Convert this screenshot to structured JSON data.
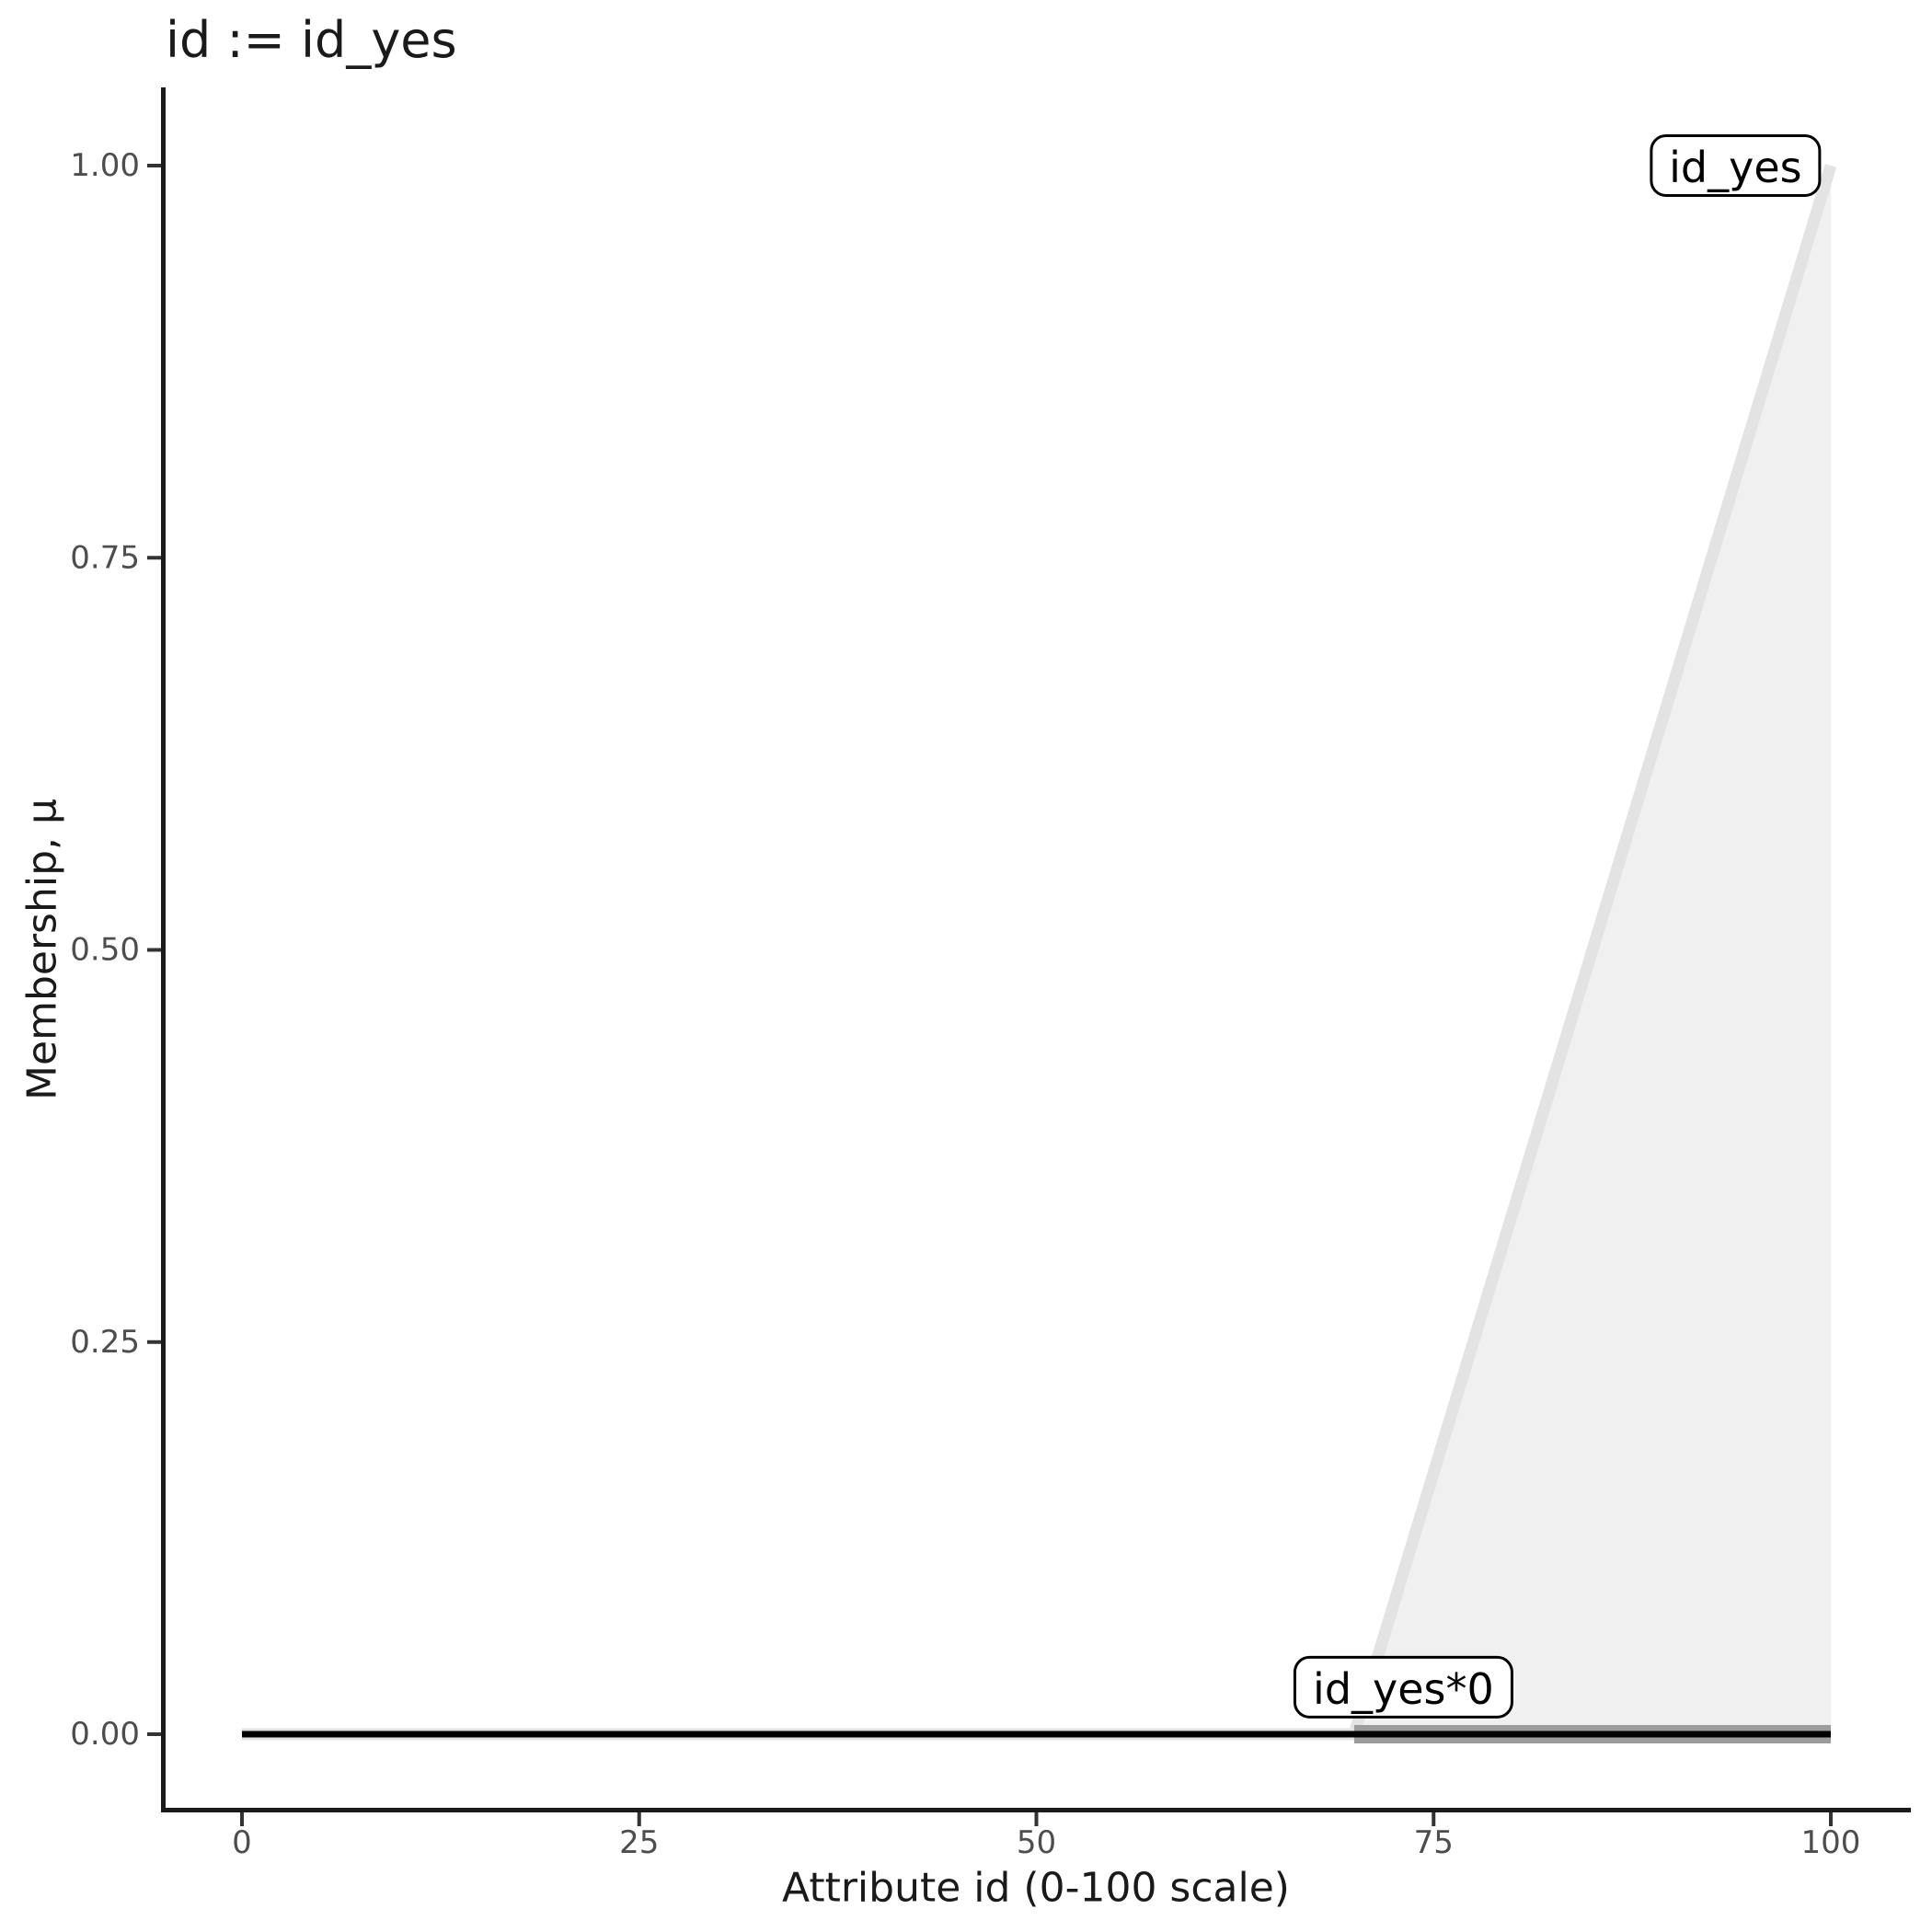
{
  "chart_data": {
    "type": "area",
    "title": "id := id_yes",
    "xlabel": "Attribute id (0-100 scale)",
    "ylabel": "Membership, μ",
    "xlim": [
      0,
      100
    ],
    "ylim": [
      0,
      1
    ],
    "grid": false,
    "legend_position": "none",
    "x_ticks": [
      {
        "label": "0",
        "value": 0
      },
      {
        "label": "25",
        "value": 25
      },
      {
        "label": "50",
        "value": 50
      },
      {
        "label": "75",
        "value": 75
      },
      {
        "label": "100",
        "value": 100
      }
    ],
    "y_ticks": [
      {
        "label": "1.00",
        "value": 1.0
      },
      {
        "label": "0.75",
        "value": 0.75
      },
      {
        "label": "0.50",
        "value": 0.5
      },
      {
        "label": "0.25",
        "value": 0.25
      },
      {
        "label": "0.00",
        "value": 0.0
      }
    ],
    "series": [
      {
        "name": "id_yes",
        "role": "original-fuzzy-set",
        "points": [
          [
            0,
            0
          ],
          [
            70,
            0
          ],
          [
            100,
            1
          ]
        ],
        "line_color": "#e3e3e3",
        "line_width": 13,
        "fill_polygon": [
          [
            70,
            0
          ],
          [
            100,
            1
          ],
          [
            100,
            0
          ]
        ],
        "fill_color": "#f0f0f0"
      },
      {
        "name": "id_yes*0 (support band)",
        "role": "result-fuzzy-set",
        "points": [
          [
            70,
            0
          ],
          [
            100,
            0
          ]
        ],
        "line_color": "#9c9c9c",
        "line_width": 20
      },
      {
        "name": "id_yes*0",
        "role": "result-zero-line",
        "points": [
          [
            0,
            0
          ],
          [
            100,
            0
          ]
        ],
        "line_color": "#000000",
        "line_width": 7
      }
    ],
    "annotations": [
      {
        "label": "id_yes",
        "x": 94.0,
        "mu": 1.0
      },
      {
        "label": "id_yes*0",
        "x": 73.1,
        "mu": 0.03
      }
    ]
  },
  "colors": {
    "background": "#ffffff",
    "axis_line": "#1a1a1a",
    "tick_mark": "#333333",
    "tick_label": "#4d4d4d",
    "text": "#1a1a1a",
    "area_fill": "#f0f0f0",
    "set_line": "#e3e3e3",
    "result_band": "#9c9c9c",
    "zero_line": "#000000"
  }
}
